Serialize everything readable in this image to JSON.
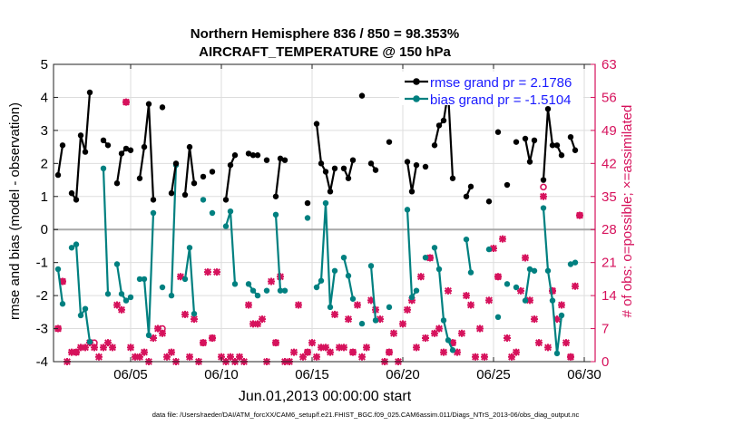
{
  "chart_data": {
    "type": "line",
    "title_line1": "Northern Hemisphere 836 / 850 = 98.353%",
    "title_line2": "AIRCRAFT_TEMPERATURE @ 150 hPa",
    "xlabel": "Jun.01,2013 00:00:00 start",
    "ylabel_left": "rmse and bias (model - observation)",
    "ylabel_right": "# of obs: o=possible; ×=assimilated",
    "footer": "data file: /Users/raeder/DAI/ATM_forcXX/CAM6_setup/f.e21.FHIST_BGC.f09_025.CAM6assim.011/Diags_NTrS_2013-06/obs_diag_output.nc",
    "x_range": [
      0.75,
      30.6
    ],
    "ylim_left": [
      -4,
      5
    ],
    "ylim_right": [
      0,
      63
    ],
    "xticks": [
      5,
      10,
      15,
      20,
      25,
      30
    ],
    "xtick_labels": [
      "06/05",
      "06/10",
      "06/15",
      "06/20",
      "06/25",
      "06/30"
    ],
    "yticks_left": [
      -4,
      -3,
      -2,
      -1,
      0,
      1,
      2,
      3,
      4,
      5
    ],
    "yticks_left_labels": [
      "-4",
      "-3",
      "-2",
      "-1",
      "0",
      "1",
      "2",
      "3",
      "4",
      "5"
    ],
    "yticks_right": [
      0,
      7,
      14,
      21,
      28,
      35,
      42,
      49,
      56,
      63
    ],
    "yticks_right_labels": [
      "0",
      "7",
      "14",
      "21",
      "28",
      "35",
      "42",
      "49",
      "56",
      "63"
    ],
    "zero_line": 0,
    "colors": {
      "rmse": "#000000",
      "bias": "#008080",
      "obs": "#d6125c",
      "legend_text": "#1a1aff",
      "right_axis": "#d6125c",
      "grid": "#dddddd"
    },
    "legend": {
      "placement": "top-right",
      "rmse_label": "rmse grand pr = 2.1786",
      "bias_label": "bias grand pr = -1.5104"
    },
    "series": [
      {
        "name": "rmse",
        "points": [
          [
            1.0,
            1.65
          ],
          [
            1.25,
            2.55
          ],
          [
            1.75,
            1.1
          ],
          [
            2.0,
            0.9
          ],
          [
            2.25,
            2.85
          ],
          [
            2.5,
            2.35
          ],
          [
            2.75,
            4.15
          ],
          [
            3.5,
            2.7
          ],
          [
            3.75,
            2.55
          ],
          [
            4.25,
            1.4
          ],
          [
            4.5,
            2.3
          ],
          [
            4.75,
            2.45
          ],
          [
            5.0,
            2.4
          ],
          [
            5.5,
            1.55
          ],
          [
            5.75,
            2.5
          ],
          [
            6.0,
            3.8
          ],
          [
            6.25,
            0.9
          ],
          [
            6.75,
            3.7
          ],
          [
            7.25,
            1.1
          ],
          [
            7.5,
            2.0
          ],
          [
            8.0,
            1.05
          ],
          [
            8.25,
            2.5
          ],
          [
            8.5,
            1.4
          ],
          [
            9.0,
            1.6
          ],
          [
            9.5,
            1.75
          ],
          [
            10.25,
            0.9
          ],
          [
            10.5,
            1.95
          ],
          [
            10.75,
            2.25
          ],
          [
            11.5,
            2.3
          ],
          [
            11.75,
            2.25
          ],
          [
            12.0,
            2.25
          ],
          [
            12.5,
            2.1
          ],
          [
            13.0,
            1.0
          ],
          [
            13.25,
            2.15
          ],
          [
            13.5,
            2.1
          ],
          [
            14.75,
            0.8
          ],
          [
            15.25,
            3.2
          ],
          [
            15.5,
            2.0
          ],
          [
            15.75,
            1.75
          ],
          [
            16.0,
            1.15
          ],
          [
            16.25,
            1.85
          ],
          [
            16.75,
            1.85
          ],
          [
            17.0,
            1.55
          ],
          [
            17.25,
            2.1
          ],
          [
            17.75,
            4.05
          ],
          [
            18.25,
            2.0
          ],
          [
            18.5,
            1.8
          ],
          [
            19.25,
            2.65
          ],
          [
            20.25,
            2.05
          ],
          [
            20.5,
            1.15
          ],
          [
            20.75,
            1.95
          ],
          [
            21.25,
            1.9
          ],
          [
            21.75,
            2.55
          ],
          [
            22.0,
            3.15
          ],
          [
            22.25,
            3.3
          ],
          [
            22.5,
            4.15
          ],
          [
            22.75,
            1.55
          ],
          [
            23.5,
            1.0
          ],
          [
            23.75,
            1.3
          ],
          [
            24.75,
            0.85
          ],
          [
            25.25,
            2.95
          ],
          [
            25.75,
            1.35
          ],
          [
            26.25,
            2.65
          ],
          [
            26.75,
            2.75
          ],
          [
            27.0,
            2.05
          ],
          [
            27.25,
            2.7
          ],
          [
            27.75,
            1.5
          ],
          [
            28.0,
            3.65
          ],
          [
            28.25,
            2.55
          ],
          [
            28.5,
            2.55
          ],
          [
            28.75,
            2.25
          ],
          [
            29.25,
            2.8
          ],
          [
            29.5,
            2.4
          ]
        ]
      },
      {
        "name": "bias",
        "points": [
          [
            1.0,
            -1.2
          ],
          [
            1.25,
            -2.25
          ],
          [
            1.75,
            -0.55
          ],
          [
            2.0,
            -0.45
          ],
          [
            2.25,
            -2.6
          ],
          [
            2.5,
            -2.4
          ],
          [
            2.75,
            -3.4
          ],
          [
            3.5,
            1.85
          ],
          [
            3.75,
            -1.95
          ],
          [
            4.25,
            -1.05
          ],
          [
            4.5,
            -1.95
          ],
          [
            4.75,
            -2.15
          ],
          [
            5.0,
            -2.05
          ],
          [
            5.5,
            -1.5
          ],
          [
            5.75,
            -1.5
          ],
          [
            6.0,
            -3.2
          ],
          [
            6.25,
            0.5
          ],
          [
            6.75,
            -1.75
          ],
          [
            7.25,
            -2.0
          ],
          [
            7.5,
            1.95
          ],
          [
            8.0,
            -1.5
          ],
          [
            8.25,
            -0.55
          ],
          [
            8.5,
            -2.55
          ],
          [
            9.0,
            0.9
          ],
          [
            9.5,
            0.5
          ],
          [
            10.25,
            0.1
          ],
          [
            10.5,
            0.55
          ],
          [
            10.75,
            -1.65
          ],
          [
            11.5,
            -1.65
          ],
          [
            11.75,
            -1.85
          ],
          [
            12.0,
            -2.0
          ],
          [
            12.5,
            -1.85
          ],
          [
            13.0,
            0.45
          ],
          [
            13.25,
            -1.85
          ],
          [
            13.5,
            -1.85
          ],
          [
            14.75,
            0.35
          ],
          [
            15.25,
            -1.75
          ],
          [
            15.5,
            -1.55
          ],
          [
            15.75,
            0.8
          ],
          [
            16.0,
            -2.35
          ],
          [
            16.25,
            -1.25
          ],
          [
            16.75,
            -0.85
          ],
          [
            17.0,
            -1.4
          ],
          [
            17.25,
            -2.1
          ],
          [
            17.75,
            -2.85
          ],
          [
            18.25,
            -1.1
          ],
          [
            18.5,
            -2.75
          ],
          [
            19.25,
            -2.35
          ],
          [
            20.25,
            0.6
          ],
          [
            20.5,
            -2.05
          ],
          [
            20.75,
            -1.85
          ],
          [
            21.25,
            -0.85
          ],
          [
            21.75,
            -0.55
          ],
          [
            22.0,
            -1.2
          ],
          [
            22.25,
            -2.75
          ],
          [
            22.5,
            -3.35
          ],
          [
            22.75,
            -3.65
          ],
          [
            23.5,
            -0.3
          ],
          [
            23.75,
            -1.3
          ],
          [
            24.75,
            -0.6
          ],
          [
            25.25,
            -2.65
          ],
          [
            25.75,
            -1.65
          ],
          [
            26.25,
            -1.75
          ],
          [
            26.75,
            -2.15
          ],
          [
            27.0,
            -1.2
          ],
          [
            27.25,
            -1.25
          ],
          [
            27.75,
            0.65
          ],
          [
            28.0,
            -1.25
          ],
          [
            28.25,
            -2.15
          ],
          [
            28.5,
            -3.75
          ],
          [
            28.75,
            -2.6
          ],
          [
            29.25,
            -1.05
          ],
          [
            29.5,
            -1.0
          ]
        ]
      },
      {
        "name": "obs_possible",
        "points": [
          [
            1.0,
            7
          ],
          [
            1.25,
            17
          ],
          [
            2.0,
            2
          ],
          [
            3.0,
            4
          ],
          [
            4.75,
            55
          ],
          [
            6.75,
            7
          ],
          [
            9.0,
            4
          ],
          [
            9.5,
            5
          ],
          [
            13.0,
            4
          ],
          [
            14.75,
            2
          ],
          [
            17.25,
            2
          ],
          [
            19.25,
            2
          ],
          [
            21.5,
            22
          ],
          [
            22.75,
            4
          ],
          [
            25.25,
            18
          ],
          [
            27.75,
            37
          ],
          [
            28.25,
            15
          ],
          [
            29.25,
            1
          ],
          [
            29.75,
            31
          ]
        ]
      },
      {
        "name": "obs_assimilated",
        "points": [
          [
            1.0,
            7
          ],
          [
            1.25,
            17
          ],
          [
            1.5,
            0
          ],
          [
            1.75,
            2
          ],
          [
            2.0,
            2
          ],
          [
            2.25,
            3
          ],
          [
            2.5,
            3
          ],
          [
            2.75,
            4
          ],
          [
            3.0,
            3
          ],
          [
            3.25,
            1
          ],
          [
            3.5,
            3
          ],
          [
            3.75,
            4
          ],
          [
            4.0,
            3
          ],
          [
            4.25,
            12
          ],
          [
            4.5,
            11
          ],
          [
            4.75,
            55
          ],
          [
            5.0,
            3
          ],
          [
            5.25,
            1
          ],
          [
            5.5,
            1
          ],
          [
            5.75,
            2
          ],
          [
            6.0,
            0
          ],
          [
            6.25,
            5
          ],
          [
            6.5,
            7
          ],
          [
            6.75,
            6
          ],
          [
            7.0,
            1
          ],
          [
            7.25,
            2
          ],
          [
            7.5,
            0
          ],
          [
            7.75,
            18
          ],
          [
            8.0,
            10
          ],
          [
            8.25,
            1
          ],
          [
            8.5,
            9
          ],
          [
            8.75,
            0
          ],
          [
            9.0,
            4
          ],
          [
            9.25,
            19
          ],
          [
            9.5,
            5
          ],
          [
            9.75,
            19
          ],
          [
            10.0,
            1
          ],
          [
            10.25,
            0
          ],
          [
            10.5,
            1
          ],
          [
            10.75,
            0
          ],
          [
            11.0,
            1
          ],
          [
            11.25,
            0
          ],
          [
            11.5,
            12
          ],
          [
            11.75,
            8
          ],
          [
            12.0,
            8
          ],
          [
            12.25,
            9
          ],
          [
            12.5,
            0
          ],
          [
            12.75,
            17
          ],
          [
            13.0,
            4
          ],
          [
            13.25,
            18
          ],
          [
            13.5,
            0
          ],
          [
            13.75,
            0
          ],
          [
            14.0,
            2
          ],
          [
            14.25,
            12
          ],
          [
            14.5,
            1
          ],
          [
            14.75,
            2
          ],
          [
            15.0,
            4
          ],
          [
            15.25,
            1
          ],
          [
            15.5,
            3
          ],
          [
            15.75,
            3
          ],
          [
            16.0,
            2
          ],
          [
            16.25,
            10
          ],
          [
            16.5,
            3
          ],
          [
            16.75,
            3
          ],
          [
            17.0,
            9
          ],
          [
            17.25,
            2
          ],
          [
            17.5,
            12
          ],
          [
            17.75,
            1
          ],
          [
            18.0,
            3
          ],
          [
            18.25,
            13
          ],
          [
            18.5,
            11
          ],
          [
            18.75,
            9
          ],
          [
            19.0,
            0
          ],
          [
            19.25,
            2
          ],
          [
            19.5,
            6
          ],
          [
            19.75,
            0
          ],
          [
            20.0,
            8
          ],
          [
            20.25,
            11
          ],
          [
            20.5,
            13
          ],
          [
            20.75,
            3
          ],
          [
            21.0,
            18
          ],
          [
            21.25,
            5
          ],
          [
            21.5,
            22
          ],
          [
            21.75,
            6
          ],
          [
            22.0,
            7
          ],
          [
            22.25,
            2
          ],
          [
            22.5,
            15
          ],
          [
            22.75,
            4
          ],
          [
            23.0,
            2
          ],
          [
            23.25,
            6
          ],
          [
            23.5,
            14
          ],
          [
            23.75,
            12
          ],
          [
            24.0,
            1
          ],
          [
            24.25,
            7
          ],
          [
            24.5,
            1
          ],
          [
            24.75,
            13
          ],
          [
            25.0,
            24
          ],
          [
            25.25,
            18
          ],
          [
            25.5,
            26
          ],
          [
            25.75,
            5
          ],
          [
            26.0,
            1
          ],
          [
            26.25,
            2
          ],
          [
            26.5,
            15
          ],
          [
            26.75,
            22
          ],
          [
            27.0,
            13
          ],
          [
            27.25,
            9
          ],
          [
            27.5,
            4
          ],
          [
            27.75,
            35
          ],
          [
            28.0,
            3
          ],
          [
            28.25,
            15
          ],
          [
            28.5,
            9
          ],
          [
            28.75,
            12
          ],
          [
            29.0,
            4
          ],
          [
            29.25,
            1
          ],
          [
            29.5,
            16
          ],
          [
            29.75,
            31
          ]
        ]
      }
    ]
  }
}
